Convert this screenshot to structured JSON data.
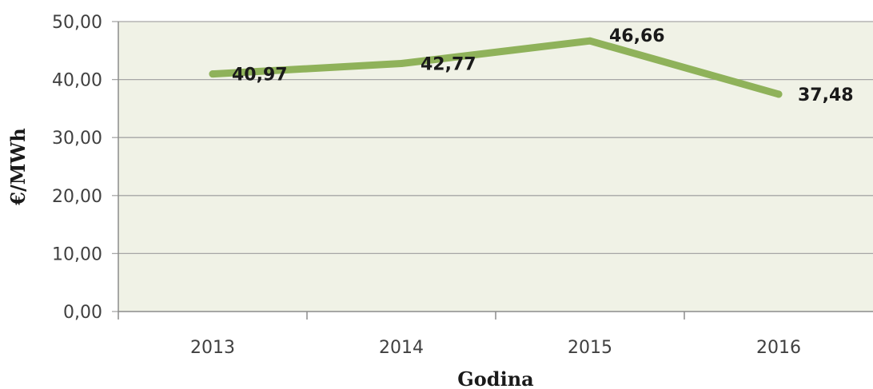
{
  "chart_data": {
    "type": "line",
    "categories": [
      "2013",
      "2014",
      "2015",
      "2016"
    ],
    "series": [
      {
        "values": [
          40.97,
          42.77,
          46.66,
          37.48
        ],
        "data_labels": [
          "40,97",
          "42,77",
          "46,66",
          "37,48"
        ],
        "color": "#8fb25a"
      }
    ],
    "title": "",
    "xlabel": "Godina",
    "ylabel": "€/MWh",
    "ylim": [
      0,
      50
    ],
    "yticks": [
      0,
      10,
      20,
      30,
      40,
      50
    ],
    "ytick_labels": [
      "0,00",
      "10,00",
      "20,00",
      "30,00",
      "40,00",
      "50,00"
    ],
    "grid": true,
    "legend": "none",
    "colors": {
      "plot_background": "#f0f2e6",
      "gridline": "#a6a6a6",
      "line": "#8fb25a"
    }
  }
}
